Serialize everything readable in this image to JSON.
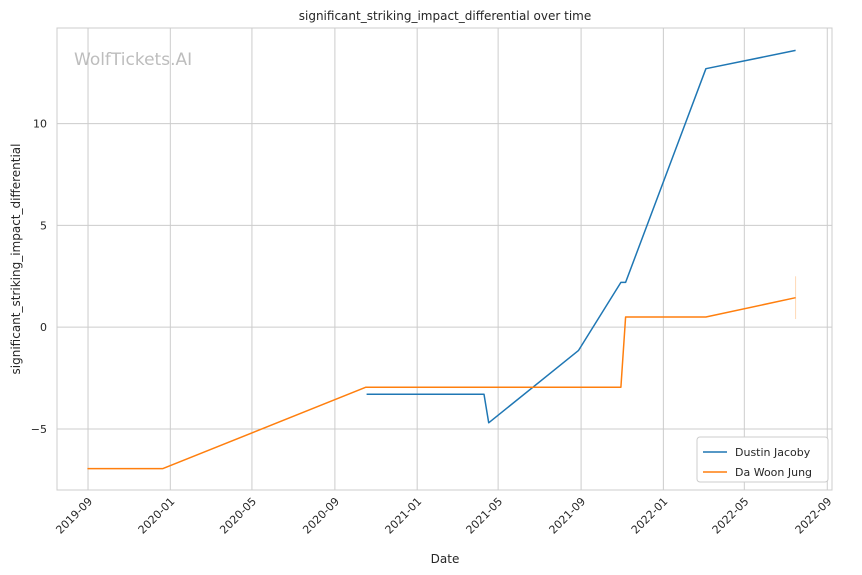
{
  "chart_data": {
    "type": "line",
    "title": "significant_striking_impact_differential over time",
    "xlabel": "Date",
    "ylabel": "significant_striking_impact_differential",
    "watermark": "WolfTickets.AI",
    "x_tick_labels": [
      "2019-09",
      "2020-01",
      "2020-05",
      "2020-09",
      "2021-01",
      "2021-05",
      "2021-09",
      "2022-01",
      "2022-05",
      "2022-09"
    ],
    "y_tick_labels": [
      "−5",
      "0",
      "5",
      "10"
    ],
    "xlim": [
      "2019-07-17",
      "2022-09-08"
    ],
    "ylim": [
      -8.0,
      14.7
    ],
    "grid": true,
    "legend_position": "lower-right",
    "series": [
      {
        "name": "Dustin Jacoby",
        "color": "#1f77b4",
        "points": [
          [
            "2020-10-18",
            -3.3
          ],
          [
            "2021-04-10",
            -3.3
          ],
          [
            "2021-04-17",
            -4.7
          ],
          [
            "2021-08-28",
            -1.15
          ],
          [
            "2021-10-30",
            2.2
          ],
          [
            "2021-11-06",
            2.2
          ],
          [
            "2022-03-05",
            12.7
          ],
          [
            "2022-07-16",
            13.6
          ]
        ]
      },
      {
        "name": "Da Woon Jung",
        "color": "#ff7f0e",
        "points": [
          [
            "2019-08-31",
            -6.95
          ],
          [
            "2019-12-21",
            -6.95
          ],
          [
            "2020-10-17",
            -2.95
          ],
          [
            "2021-10-30",
            -2.95
          ],
          [
            "2021-11-06",
            0.5
          ],
          [
            "2022-03-05",
            0.5
          ],
          [
            "2022-07-16",
            1.45
          ]
        ],
        "error_bar": {
          "date": "2022-07-16",
          "low": 0.4,
          "high": 2.5
        }
      }
    ]
  }
}
